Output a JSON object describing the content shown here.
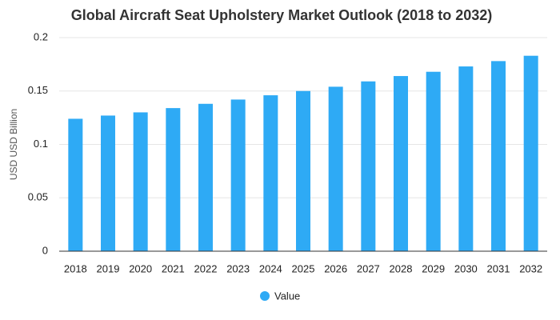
{
  "chart_data": {
    "type": "bar",
    "title": "Global Aircraft Seat Upholstery Market Outlook (2018 to 2032)",
    "xlabel": "",
    "ylabel": "USD USD Billion",
    "ylim": [
      0,
      0.2
    ],
    "yticks": [
      "0",
      "0.05",
      "0.1",
      "0.15",
      "0.2"
    ],
    "grid": true,
    "legend_position": "bottom",
    "categories": [
      "2018",
      "2019",
      "2020",
      "2021",
      "2022",
      "2023",
      "2024",
      "2025",
      "2026",
      "2027",
      "2028",
      "2029",
      "2030",
      "2031",
      "2032"
    ],
    "series": [
      {
        "name": "Value",
        "color": "#2eaaf5",
        "values": [
          0.124,
          0.127,
          0.13,
          0.134,
          0.138,
          0.142,
          0.146,
          0.15,
          0.154,
          0.159,
          0.164,
          0.168,
          0.173,
          0.178,
          0.183
        ]
      }
    ]
  }
}
